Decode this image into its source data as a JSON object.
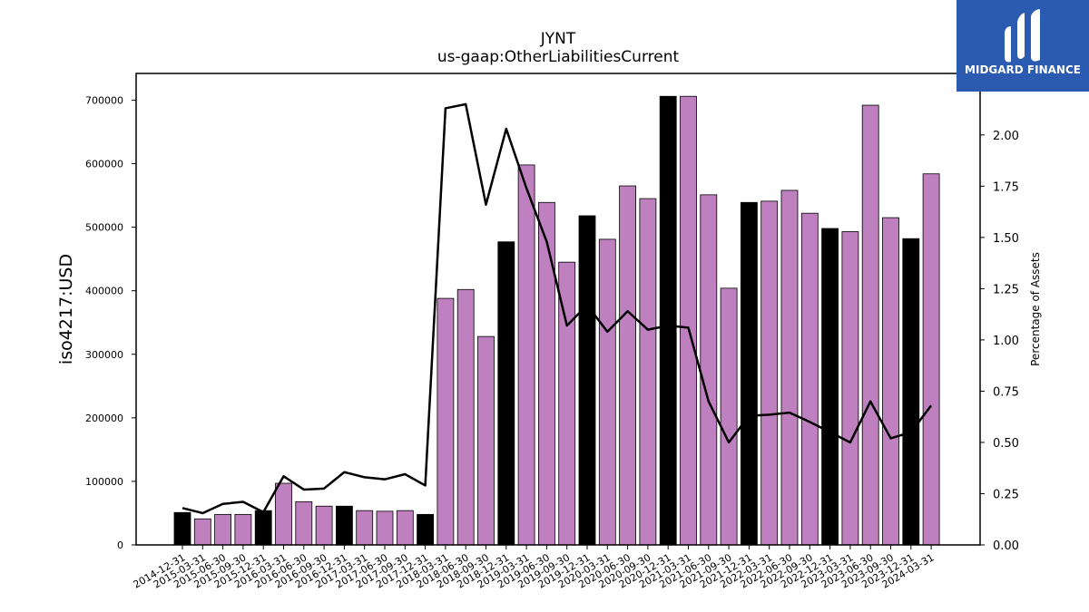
{
  "brand": {
    "name": "MIDGARD FINANCE",
    "color": "#2b5bb0"
  },
  "chart_data": {
    "type": "bar",
    "title": "JYNT",
    "subtitle": "us-gaap:OtherLiabilitiesCurrent",
    "ylabel": "iso4217:USD",
    "y2label": "Percentage of Assets",
    "ylim": [
      0,
      742000
    ],
    "y2lim": [
      0,
      2.3
    ],
    "yticks": [
      0,
      100000,
      200000,
      300000,
      400000,
      500000,
      600000,
      700000
    ],
    "y2ticks": [
      "0.00",
      "0.25",
      "0.50",
      "0.75",
      "1.00",
      "1.25",
      "1.50",
      "1.75",
      "2.00"
    ],
    "grid": false,
    "colors": {
      "annual": "#000000",
      "quarterly": "#bf80bf",
      "line": "#000000"
    },
    "categories": [
      "2014-12-31",
      "2015-03-31",
      "2015-06-30",
      "2015-09-30",
      "2015-12-31",
      "2016-03-31",
      "2016-06-30",
      "2016-09-30",
      "2016-12-31",
      "2017-03-31",
      "2017-06-30",
      "2017-09-30",
      "2017-12-31",
      "2018-03-31",
      "2018-06-30",
      "2018-09-30",
      "2018-12-31",
      "2019-03-31",
      "2019-06-30",
      "2019-09-30",
      "2019-12-31",
      "2020-03-31",
      "2020-06-30",
      "2020-09-30",
      "2020-12-31",
      "2021-03-31",
      "2021-06-30",
      "2021-09-30",
      "2021-12-31",
      "2022-03-31",
      "2022-06-30",
      "2022-09-30",
      "2022-12-31",
      "2023-03-31",
      "2023-06-30",
      "2023-09-30",
      "2023-12-31",
      "2024-03-31"
    ],
    "values": [
      51000,
      41000,
      48000,
      48000,
      54000,
      97000,
      68000,
      61000,
      61000,
      54000,
      53000,
      54000,
      48000,
      388000,
      402000,
      328000,
      477000,
      598000,
      539000,
      445000,
      518000,
      481000,
      565000,
      545000,
      706000,
      706000,
      551000,
      404000,
      539000,
      541000,
      558000,
      522000,
      498000,
      493000,
      692000,
      515000,
      482000,
      584000
    ],
    "annual": [
      true,
      false,
      false,
      false,
      true,
      false,
      false,
      false,
      true,
      false,
      false,
      false,
      true,
      false,
      false,
      false,
      true,
      false,
      false,
      false,
      true,
      false,
      false,
      false,
      true,
      false,
      false,
      false,
      true,
      false,
      false,
      false,
      true,
      false,
      false,
      false,
      true,
      false
    ],
    "pct_of_assets": [
      0.18,
      0.155,
      0.2,
      0.21,
      0.16,
      0.335,
      0.27,
      0.275,
      0.355,
      0.33,
      0.32,
      0.345,
      0.29,
      2.13,
      2.15,
      1.66,
      2.03,
      1.74,
      1.48,
      1.07,
      1.17,
      1.04,
      1.14,
      1.05,
      1.07,
      1.06,
      0.7,
      0.5,
      0.63,
      0.635,
      0.645,
      0.6,
      0.55,
      0.5,
      0.7,
      0.52,
      0.55,
      0.68
    ]
  }
}
